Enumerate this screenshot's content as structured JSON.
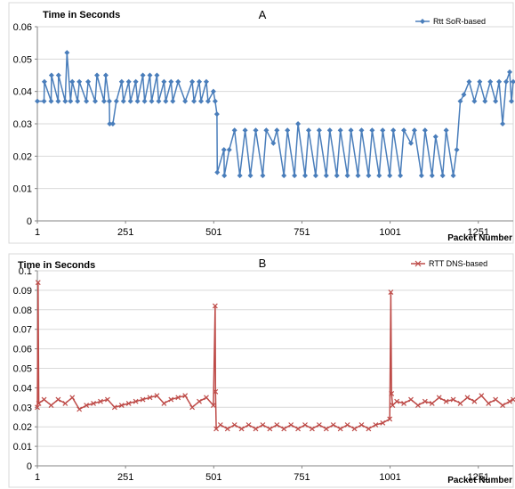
{
  "chart_data": [
    {
      "type": "line",
      "panel_label": "A",
      "ylabel": "Time in Seconds",
      "xlabel": "Packet Number",
      "ylim": [
        0,
        0.06
      ],
      "yticks": [
        "0",
        "0.01",
        "0.02",
        "0.03",
        "0.04",
        "0.05",
        "0.06"
      ],
      "yticks_values": [
        0,
        0.01,
        0.02,
        0.03,
        0.04,
        0.05,
        0.06
      ],
      "xlim": [
        1,
        1350
      ],
      "xticks": [
        "1",
        "251",
        "501",
        "751",
        "1001",
        "1251"
      ],
      "xticks_values": [
        1,
        251,
        501,
        751,
        1001,
        1251
      ],
      "grid": true,
      "legend": "top-right",
      "series": [
        {
          "name": "Rtt SoR-based",
          "color": "#4a7ebb",
          "marker": "diamond",
          "x": [
            1,
            20,
            21,
            40,
            41,
            60,
            61,
            80,
            85,
            95,
            100,
            115,
            120,
            140,
            145,
            165,
            170,
            190,
            195,
            205,
            206,
            215,
            225,
            240,
            245,
            260,
            265,
            280,
            285,
            300,
            305,
            320,
            325,
            340,
            345,
            360,
            365,
            380,
            385,
            400,
            420,
            440,
            445,
            460,
            465,
            480,
            485,
            500,
            505,
            510,
            511,
            530,
            531,
            545,
            560,
            575,
            590,
            605,
            620,
            640,
            650,
            670,
            680,
            700,
            710,
            730,
            740,
            760,
            770,
            790,
            800,
            820,
            830,
            850,
            860,
            880,
            890,
            910,
            920,
            940,
            950,
            970,
            980,
            1000,
            1010,
            1030,
            1040,
            1060,
            1070,
            1090,
            1100,
            1120,
            1130,
            1150,
            1160,
            1180,
            1190,
            1200,
            1210,
            1225,
            1240,
            1255,
            1270,
            1285,
            1300,
            1310,
            1320,
            1330,
            1340,
            1345,
            1350
          ],
          "y": [
            0.037,
            0.037,
            0.043,
            0.037,
            0.045,
            0.037,
            0.045,
            0.037,
            0.052,
            0.037,
            0.043,
            0.037,
            0.043,
            0.037,
            0.043,
            0.037,
            0.045,
            0.037,
            0.045,
            0.037,
            0.03,
            0.03,
            0.037,
            0.043,
            0.037,
            0.043,
            0.037,
            0.043,
            0.037,
            0.045,
            0.037,
            0.045,
            0.037,
            0.045,
            0.037,
            0.043,
            0.037,
            0.043,
            0.037,
            0.043,
            0.037,
            0.043,
            0.037,
            0.043,
            0.037,
            0.043,
            0.037,
            0.04,
            0.037,
            0.033,
            0.015,
            0.022,
            0.014,
            0.022,
            0.028,
            0.014,
            0.028,
            0.014,
            0.028,
            0.014,
            0.028,
            0.024,
            0.028,
            0.014,
            0.028,
            0.014,
            0.03,
            0.014,
            0.028,
            0.014,
            0.028,
            0.014,
            0.028,
            0.014,
            0.028,
            0.014,
            0.028,
            0.014,
            0.028,
            0.014,
            0.028,
            0.014,
            0.028,
            0.014,
            0.028,
            0.014,
            0.028,
            0.024,
            0.028,
            0.014,
            0.028,
            0.014,
            0.026,
            0.014,
            0.028,
            0.014,
            0.022,
            0.037,
            0.039,
            0.043,
            0.037,
            0.043,
            0.037,
            0.043,
            0.037,
            0.043,
            0.03,
            0.043,
            0.046,
            0.037,
            0.043
          ]
        }
      ]
    },
    {
      "type": "line",
      "panel_label": "B",
      "ylabel": "Time in Seconds",
      "xlabel": "Packet Number",
      "ylim": [
        0,
        0.1
      ],
      "yticks": [
        "0",
        "0.01",
        "0.02",
        "0.03",
        "0.04",
        "0.05",
        "0.06",
        "0.07",
        "0.08",
        "0.09",
        "0.1"
      ],
      "yticks_values": [
        0,
        0.01,
        0.02,
        0.03,
        0.04,
        0.05,
        0.06,
        0.07,
        0.08,
        0.09,
        0.1
      ],
      "xlim": [
        1,
        1350
      ],
      "xticks": [
        "1",
        "251",
        "501",
        "751",
        "1001",
        "1251"
      ],
      "xticks_values": [
        1,
        251,
        501,
        751,
        1001,
        1251
      ],
      "grid": true,
      "legend": "top-right",
      "series": [
        {
          "name": "RTT DNS-based",
          "color": "#be4b48",
          "marker": "x",
          "x": [
            1,
            3,
            5,
            20,
            40,
            60,
            80,
            100,
            120,
            140,
            160,
            180,
            200,
            220,
            240,
            260,
            280,
            300,
            320,
            340,
            360,
            380,
            400,
            420,
            440,
            460,
            480,
            500,
            505,
            506,
            508,
            520,
            540,
            560,
            580,
            600,
            620,
            640,
            660,
            680,
            700,
            720,
            740,
            760,
            780,
            800,
            820,
            840,
            860,
            880,
            900,
            920,
            940,
            960,
            980,
            1000,
            1003,
            1005,
            1008,
            1020,
            1040,
            1060,
            1080,
            1100,
            1120,
            1140,
            1160,
            1180,
            1200,
            1220,
            1240,
            1260,
            1280,
            1300,
            1320,
            1340,
            1350
          ],
          "y": [
            0.03,
            0.094,
            0.032,
            0.034,
            0.031,
            0.034,
            0.032,
            0.035,
            0.029,
            0.031,
            0.032,
            0.033,
            0.034,
            0.03,
            0.031,
            0.032,
            0.033,
            0.034,
            0.035,
            0.036,
            0.032,
            0.034,
            0.035,
            0.036,
            0.03,
            0.033,
            0.035,
            0.031,
            0.082,
            0.038,
            0.019,
            0.021,
            0.019,
            0.021,
            0.019,
            0.021,
            0.019,
            0.021,
            0.019,
            0.021,
            0.019,
            0.021,
            0.019,
            0.021,
            0.019,
            0.021,
            0.019,
            0.021,
            0.019,
            0.021,
            0.019,
            0.021,
            0.019,
            0.021,
            0.022,
            0.024,
            0.089,
            0.037,
            0.031,
            0.033,
            0.032,
            0.034,
            0.031,
            0.033,
            0.032,
            0.035,
            0.033,
            0.034,
            0.032,
            0.035,
            0.033,
            0.036,
            0.032,
            0.034,
            0.031,
            0.033,
            0.034
          ]
        }
      ]
    }
  ]
}
